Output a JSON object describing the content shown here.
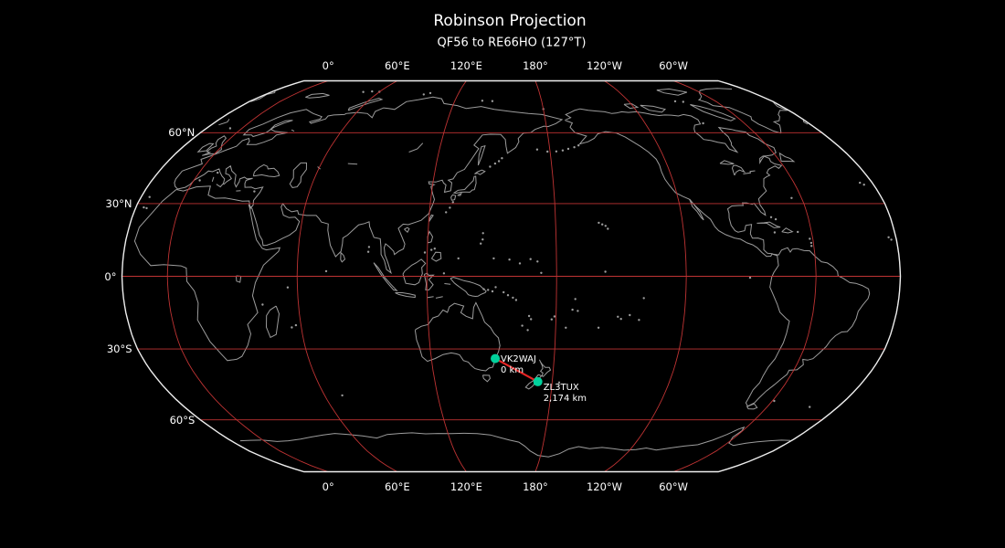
{
  "title": "Robinson Projection",
  "subtitle": "QF56 to RE66HO (127°T)",
  "projection": {
    "name": "Robinson",
    "central_longitude": 159,
    "graticule_lon_step_deg": 60,
    "graticule_lat_step_deg": 30,
    "lon_lines_deg": [
      0,
      60,
      120,
      180,
      240,
      300
    ],
    "lat_lines_deg": [
      60,
      30,
      0,
      -30,
      -60
    ]
  },
  "axis": {
    "top_labels": [
      "0°",
      "60°E",
      "120°E",
      "180°",
      "120°W",
      "60°W"
    ],
    "bottom_labels": [
      "0°",
      "60°E",
      "120°E",
      "180°",
      "120°W",
      "60°W"
    ],
    "left_labels": [
      "60°N",
      "30°N",
      "0°",
      "30°S",
      "60°S"
    ],
    "tick_lons": [
      0,
      60,
      120,
      180,
      240,
      300
    ],
    "tick_lats": [
      60,
      30,
      0,
      -30,
      -60
    ]
  },
  "stations": [
    {
      "callsign": "VK2WAJ",
      "grid": "QF56",
      "distance_label": "0 km",
      "lat": -33.95,
      "lon": 151.2,
      "label_offset": [
        6,
        -5
      ]
    },
    {
      "callsign": "ZL3TUX",
      "grid": "RE66HO",
      "distance_label": "2,174 km",
      "lat": -43.55,
      "lon": 172.65,
      "label_offset": [
        6,
        1
      ]
    }
  ],
  "path": {
    "from_grid": "QF56",
    "to_grid": "RE66HO",
    "bearing_label": "127°T",
    "distance_label": "2,174 km"
  },
  "colors": {
    "background": "#000000",
    "text": "#ffffff",
    "graticule": "#bf3333",
    "outline": "#eeeeee",
    "coastline": "#9c9c9c",
    "geodesic": "#e62525",
    "marker": "#00d19c"
  }
}
